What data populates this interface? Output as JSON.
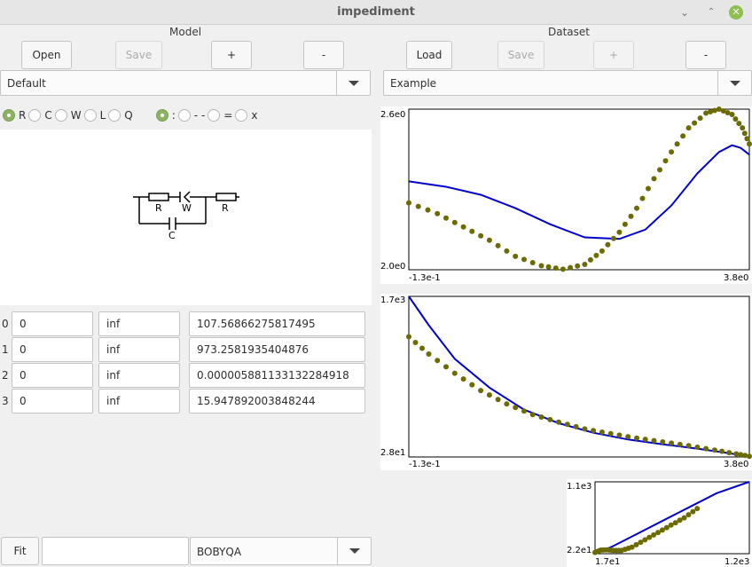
{
  "window": {
    "title": "impediment",
    "min": "⌄",
    "max": "⌃",
    "close": "✕"
  },
  "model": {
    "label": "Model",
    "buttons": {
      "open": "Open",
      "save": "Save",
      "add": "+",
      "remove": "-"
    },
    "select": "Default",
    "elements": [
      "R",
      "C",
      "W",
      "L",
      "Q"
    ],
    "connectors": [
      ":",
      "- -",
      "=",
      "x"
    ],
    "circuit_labels": {
      "r1": "R",
      "w": "W",
      "r2": "R",
      "c": "C"
    },
    "params": [
      {
        "index": "0",
        "min": "0",
        "max": "inf",
        "value": "107.56866275817495"
      },
      {
        "index": "1",
        "min": "0",
        "max": "inf",
        "value": "973.2581935404876"
      },
      {
        "index": "2",
        "min": "0",
        "max": "inf",
        "value": "0.000005881133132284918"
      },
      {
        "index": "3",
        "min": "0",
        "max": "inf",
        "value": "15.947892003848244"
      }
    ]
  },
  "fit": {
    "button": "Fit",
    "input": "",
    "method": "BOBYQA"
  },
  "dataset": {
    "label": "Dataset",
    "buttons": {
      "load": "Load",
      "save": "Save",
      "add": "+",
      "remove": "-"
    },
    "select": "Example"
  },
  "colors": {
    "model_line": "#0000cc",
    "data_points": "#6b6b00",
    "accent": "#8cb264"
  },
  "chart_data": [
    {
      "type": "line",
      "x_label_min": "-1.3e-1",
      "x_label_max": "3.8e0",
      "y_label_min": "2.0e0",
      "y_label_max": "2.6e0",
      "xlim": [
        -0.13,
        3.8
      ],
      "ylim": [
        2.0,
        2.6
      ],
      "series": [
        {
          "style": "line",
          "points": [
            [
              -0.13,
              2.33
            ],
            [
              0.3,
              2.31
            ],
            [
              0.7,
              2.28
            ],
            [
              1.1,
              2.23
            ],
            [
              1.5,
              2.17
            ],
            [
              1.9,
              2.121
            ],
            [
              2.3,
              2.115
            ],
            [
              2.6,
              2.15
            ],
            [
              2.9,
              2.24
            ],
            [
              3.2,
              2.36
            ],
            [
              3.45,
              2.44
            ],
            [
              3.6,
              2.465
            ],
            [
              3.7,
              2.455
            ],
            [
              3.8,
              2.43
            ]
          ]
        },
        {
          "style": "points",
          "points": [
            [
              -0.13,
              2.25
            ],
            [
              0.2,
              2.21
            ],
            [
              0.5,
              2.16
            ],
            [
              0.8,
              2.11
            ],
            [
              1.1,
              2.05
            ],
            [
              1.4,
              2.015
            ],
            [
              1.65,
              2.002
            ],
            [
              1.9,
              2.02
            ],
            [
              2.1,
              2.07
            ],
            [
              2.3,
              2.14
            ],
            [
              2.5,
              2.23
            ],
            [
              2.7,
              2.34
            ],
            [
              2.9,
              2.44
            ],
            [
              3.1,
              2.53
            ],
            [
              3.3,
              2.585
            ],
            [
              3.45,
              2.6
            ],
            [
              3.6,
              2.58
            ],
            [
              3.72,
              2.53
            ],
            [
              3.8,
              2.47
            ]
          ]
        }
      ]
    },
    {
      "type": "line",
      "x_label_min": "-1.3e-1",
      "x_label_max": "3.8e0",
      "y_label_min": "2.8e1",
      "y_label_max": "1.7e3",
      "xlim": [
        -0.13,
        3.8
      ],
      "ylim": [
        28,
        1700
      ],
      "series": [
        {
          "style": "line",
          "points": [
            [
              -0.13,
              1700
            ],
            [
              0.1,
              1400
            ],
            [
              0.4,
              1050
            ],
            [
              0.8,
              750
            ],
            [
              1.2,
              520
            ],
            [
              1.6,
              380
            ],
            [
              2.0,
              280
            ],
            [
              2.4,
              210
            ],
            [
              2.8,
              160
            ],
            [
              3.2,
              115
            ],
            [
              3.5,
              75
            ],
            [
              3.8,
              35
            ]
          ]
        },
        {
          "style": "points",
          "points": [
            [
              -0.13,
              1280
            ],
            [
              0.1,
              1100
            ],
            [
              0.4,
              900
            ],
            [
              0.7,
              720
            ],
            [
              1.0,
              580
            ],
            [
              1.3,
              470
            ],
            [
              1.6,
              390
            ],
            [
              1.9,
              320
            ],
            [
              2.2,
              270
            ],
            [
              2.5,
              225
            ],
            [
              2.8,
              185
            ],
            [
              3.1,
              145
            ],
            [
              3.4,
              100
            ],
            [
              3.65,
              60
            ],
            [
              3.8,
              35
            ]
          ]
        }
      ]
    },
    {
      "type": "line",
      "x_label_min": "1.7e1",
      "x_label_max": "1.2e3",
      "y_label_min": "2.2e1",
      "y_label_max": "1.1e3",
      "xlim": [
        17,
        1200
      ],
      "ylim": [
        22,
        1100
      ],
      "series": [
        {
          "style": "line",
          "points": [
            [
              17,
              22
            ],
            [
              150,
              130
            ],
            [
              350,
              330
            ],
            [
              550,
              530
            ],
            [
              750,
              730
            ],
            [
              950,
              930
            ],
            [
              1200,
              1100
            ]
          ]
        },
        {
          "style": "points",
          "points": [
            [
              17,
              40
            ],
            [
              60,
              75
            ],
            [
              110,
              80
            ],
            [
              160,
              70
            ],
            [
              220,
              70
            ],
            [
              300,
              120
            ],
            [
              400,
              230
            ],
            [
              500,
              340
            ],
            [
              600,
              450
            ],
            [
              700,
              560
            ],
            [
              800,
              700
            ]
          ]
        }
      ]
    }
  ]
}
